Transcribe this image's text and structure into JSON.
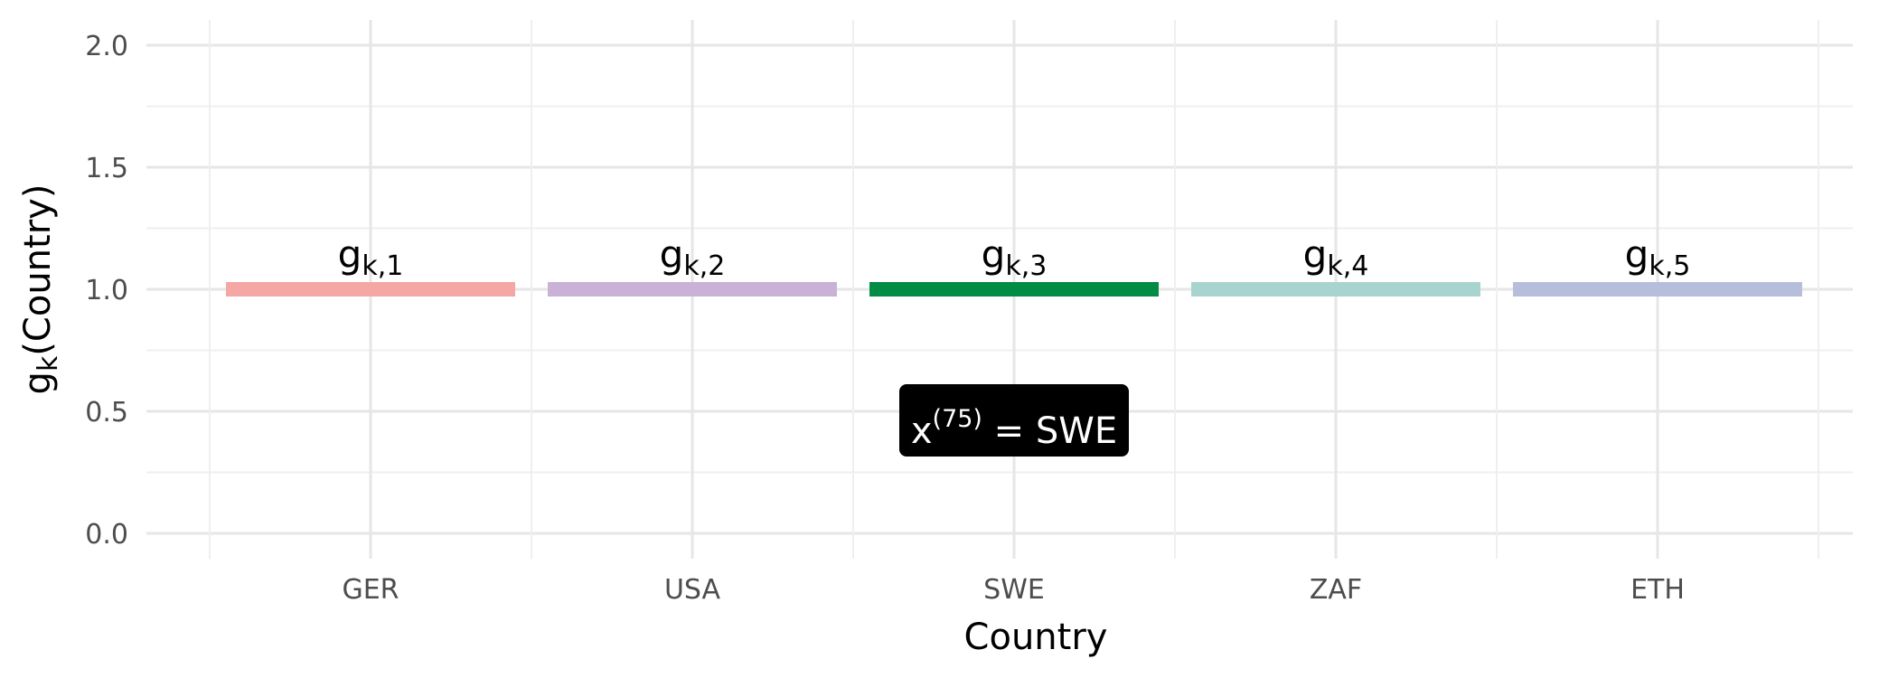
{
  "chart_data": {
    "type": "bar",
    "categories": [
      "GER",
      "USA",
      "SWE",
      "ZAF",
      "ETH"
    ],
    "values": [
      1.0,
      1.0,
      1.0,
      1.0,
      1.0
    ],
    "bar_labels": [
      {
        "main": "g",
        "sub": "k,1"
      },
      {
        "main": "g",
        "sub": "k,2"
      },
      {
        "main": "g",
        "sub": "k,3"
      },
      {
        "main": "g",
        "sub": "k,4"
      },
      {
        "main": "g",
        "sub": "k,5"
      }
    ],
    "colors": [
      "#f4a7a5",
      "#c9b2d6",
      "#008c45",
      "#a8d4d0",
      "#b7bedb"
    ],
    "highlighted": "SWE",
    "xlabel": "Country",
    "ylabel": {
      "main": "g",
      "sub": "k",
      "rest": "(Country)"
    },
    "ylim": [
      0,
      2
    ],
    "yticks": [
      "0.0",
      "0.5",
      "1.0",
      "1.5",
      "2.0"
    ],
    "grid": true,
    "annotation": {
      "base": "x",
      "sup": "(75)",
      "rest": " = SWE",
      "value": 0.5,
      "category": "SWE"
    }
  }
}
